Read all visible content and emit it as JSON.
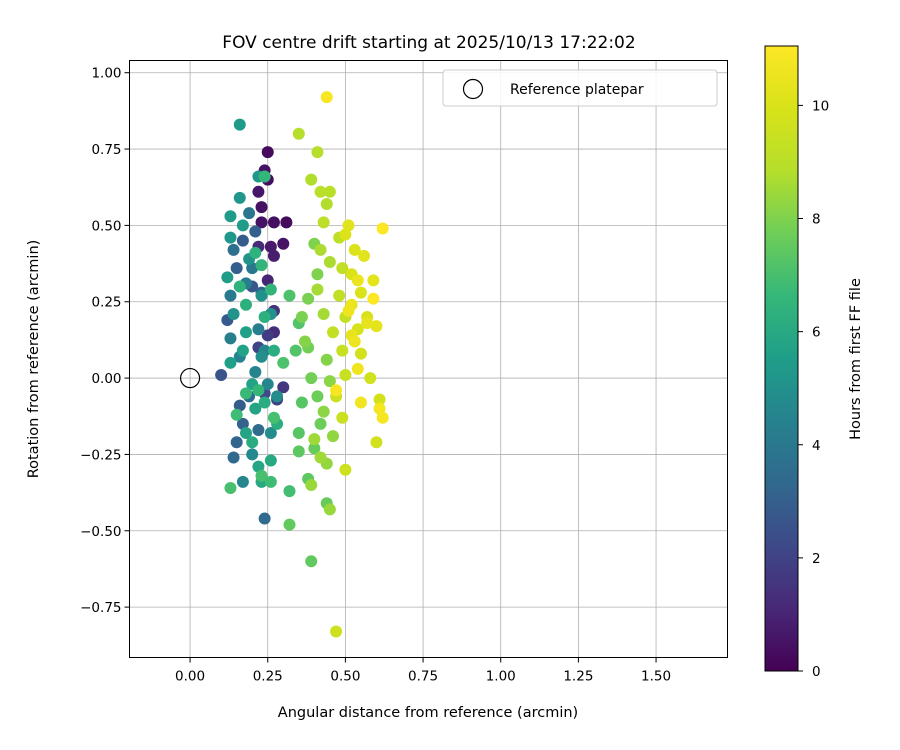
{
  "chart_data": {
    "type": "scatter",
    "title": "FOV centre drift starting at 2025/10/13 17:22:02",
    "xlabel": "Angular distance from reference (arcmin)",
    "ylabel": "Rotation from reference (arcmin)",
    "xlim": [
      -0.195,
      1.73
    ],
    "ylim": [
      -0.915,
      1.04
    ],
    "xticks": [
      0.0,
      0.25,
      0.5,
      0.75,
      1.0,
      1.25,
      1.5
    ],
    "xtick_labels": [
      "0.00",
      "0.25",
      "0.50",
      "0.75",
      "1.00",
      "1.25",
      "1.50"
    ],
    "yticks": [
      1.0,
      0.75,
      0.5,
      0.25,
      0.0,
      -0.25,
      -0.5,
      -0.75
    ],
    "ytick_labels": [
      "1.00",
      "0.75",
      "0.50",
      "0.25",
      "0.00",
      "−0.25",
      "−0.50",
      "−0.75"
    ],
    "grid": true,
    "legend": {
      "position": "top-right",
      "label": "Reference platepar"
    },
    "reference_point": {
      "x": 0.0,
      "y": 0.0
    },
    "colorbar": {
      "label": "Hours from first FF file",
      "colormap": "viridis",
      "range": [
        0,
        11.05
      ],
      "ticks": [
        0,
        2,
        4,
        6,
        8,
        10
      ],
      "tick_labels": [
        "0",
        "2",
        "4",
        "6",
        "8",
        "10"
      ]
    },
    "points_x_y_hours": [
      [
        0.25,
        0.74,
        0.3
      ],
      [
        0.24,
        0.68,
        0.5
      ],
      [
        0.25,
        0.65,
        0.4
      ],
      [
        0.22,
        0.61,
        0.6
      ],
      [
        0.23,
        0.56,
        0.5
      ],
      [
        0.23,
        0.51,
        0.5
      ],
      [
        0.27,
        0.51,
        0.4
      ],
      [
        0.31,
        0.51,
        0.3
      ],
      [
        0.26,
        0.43,
        0.7
      ],
      [
        0.3,
        0.44,
        0.5
      ],
      [
        0.27,
        0.4,
        0.8
      ],
      [
        0.22,
        0.43,
        1.2
      ],
      [
        0.25,
        0.32,
        1.0
      ],
      [
        0.27,
        0.22,
        1.5
      ],
      [
        0.27,
        0.15,
        1.3
      ],
      [
        0.25,
        0.14,
        1.8
      ],
      [
        0.3,
        -0.03,
        1.6
      ],
      [
        0.28,
        -0.07,
        1.9
      ],
      [
        0.24,
        -0.05,
        2.2
      ],
      [
        0.22,
        0.1,
        2.0
      ],
      [
        0.1,
        0.01,
        2.6
      ],
      [
        0.12,
        0.19,
        2.8
      ],
      [
        0.15,
        0.36,
        3.0
      ],
      [
        0.17,
        0.45,
        2.9
      ],
      [
        0.2,
        0.3,
        2.7
      ],
      [
        0.21,
        0.48,
        3.0
      ],
      [
        0.23,
        0.28,
        3.1
      ],
      [
        0.16,
        -0.09,
        2.9
      ],
      [
        0.17,
        -0.15,
        3.1
      ],
      [
        0.15,
        -0.21,
        3.2
      ],
      [
        0.14,
        -0.26,
        3.3
      ],
      [
        0.24,
        -0.46,
        3.4
      ],
      [
        0.22,
        -0.17,
        3.5
      ],
      [
        0.19,
        -0.06,
        3.6
      ],
      [
        0.14,
        0.42,
        3.7
      ],
      [
        0.19,
        0.54,
        3.9
      ],
      [
        0.2,
        0.36,
        4.0
      ],
      [
        0.13,
        0.27,
        4.1
      ],
      [
        0.18,
        0.31,
        4.2
      ],
      [
        0.22,
        0.16,
        4.2
      ],
      [
        0.13,
        0.13,
        4.3
      ],
      [
        0.16,
        0.07,
        4.4
      ],
      [
        0.21,
        0.02,
        4.5
      ],
      [
        0.24,
        0.09,
        4.5
      ],
      [
        0.25,
        -0.02,
        4.6
      ],
      [
        0.17,
        -0.34,
        4.6
      ],
      [
        0.2,
        -0.25,
        4.7
      ],
      [
        0.26,
        -0.18,
        4.8
      ],
      [
        0.28,
        -0.06,
        4.8
      ],
      [
        0.23,
        0.07,
        4.9
      ],
      [
        0.26,
        0.21,
        5.0
      ],
      [
        0.23,
        0.27,
        5.0
      ],
      [
        0.14,
        0.21,
        5.1
      ],
      [
        0.19,
        0.39,
        5.1
      ],
      [
        0.13,
        0.46,
        5.2
      ],
      [
        0.16,
        0.59,
        5.2
      ],
      [
        0.22,
        0.66,
        5.3
      ],
      [
        0.16,
        0.83,
        5.4
      ],
      [
        0.13,
        0.53,
        5.4
      ],
      [
        0.17,
        0.5,
        5.5
      ],
      [
        0.12,
        0.33,
        5.5
      ],
      [
        0.18,
        0.15,
        5.6
      ],
      [
        0.13,
        0.05,
        5.6
      ],
      [
        0.17,
        0.09,
        5.7
      ],
      [
        0.2,
        -0.02,
        5.7
      ],
      [
        0.21,
        -0.1,
        5.8
      ],
      [
        0.18,
        -0.18,
        5.8
      ],
      [
        0.22,
        -0.29,
        5.9
      ],
      [
        0.23,
        -0.34,
        6.0
      ],
      [
        0.26,
        -0.27,
        6.0
      ],
      [
        0.2,
        -0.21,
        6.1
      ],
      [
        0.24,
        -0.08,
        6.1
      ],
      [
        0.28,
        -0.15,
        6.2
      ],
      [
        0.27,
        0.09,
        6.2
      ],
      [
        0.24,
        0.2,
        6.3
      ],
      [
        0.18,
        0.24,
        6.3
      ],
      [
        0.16,
        0.3,
        6.4
      ],
      [
        0.21,
        0.41,
        6.4
      ],
      [
        0.23,
        0.37,
        6.5
      ],
      [
        0.26,
        0.29,
        6.5
      ],
      [
        0.24,
        0.66,
        6.6
      ],
      [
        0.22,
        -0.04,
        6.6
      ],
      [
        0.18,
        -0.05,
        6.7
      ],
      [
        0.15,
        -0.12,
        6.8
      ],
      [
        0.26,
        -0.34,
        6.8
      ],
      [
        0.32,
        -0.37,
        6.9
      ],
      [
        0.13,
        -0.36,
        7.0
      ],
      [
        0.23,
        -0.32,
        7.0
      ],
      [
        0.27,
        -0.13,
        7.0
      ],
      [
        0.3,
        0.05,
        7.1
      ],
      [
        0.32,
        0.27,
        7.1
      ],
      [
        0.35,
        0.18,
        7.2
      ],
      [
        0.34,
        0.09,
        7.2
      ],
      [
        0.36,
        -0.08,
        7.3
      ],
      [
        0.35,
        -0.18,
        7.3
      ],
      [
        0.35,
        -0.24,
        7.4
      ],
      [
        0.38,
        -0.33,
        7.4
      ],
      [
        0.32,
        -0.48,
        7.5
      ],
      [
        0.39,
        -0.6,
        7.5
      ],
      [
        0.44,
        -0.41,
        7.6
      ],
      [
        0.4,
        -0.23,
        7.6
      ],
      [
        0.42,
        -0.15,
        7.7
      ],
      [
        0.41,
        -0.06,
        7.7
      ],
      [
        0.39,
        0.0,
        7.8
      ],
      [
        0.38,
        0.1,
        7.8
      ],
      [
        0.36,
        0.2,
        7.9
      ],
      [
        0.38,
        0.26,
        7.9
      ],
      [
        0.41,
        0.34,
        8.0
      ],
      [
        0.4,
        0.44,
        8.0
      ],
      [
        0.37,
        0.12,
        8.1
      ],
      [
        0.44,
        0.06,
        8.1
      ],
      [
        0.45,
        -0.01,
        8.2
      ],
      [
        0.43,
        -0.11,
        8.2
      ],
      [
        0.46,
        -0.19,
        8.3
      ],
      [
        0.44,
        -0.28,
        8.3
      ],
      [
        0.45,
        -0.43,
        8.4
      ],
      [
        0.39,
        -0.35,
        8.4
      ],
      [
        0.42,
        -0.26,
        8.5
      ],
      [
        0.4,
        -0.2,
        8.5
      ],
      [
        0.43,
        0.21,
        8.6
      ],
      [
        0.41,
        0.29,
        8.6
      ],
      [
        0.45,
        0.38,
        8.7
      ],
      [
        0.42,
        0.42,
        8.7
      ],
      [
        0.44,
        0.57,
        8.8
      ],
      [
        0.39,
        0.65,
        8.8
      ],
      [
        0.41,
        0.74,
        8.9
      ],
      [
        0.35,
        0.8,
        8.9
      ],
      [
        0.42,
        0.61,
        9.0
      ],
      [
        0.45,
        0.61,
        9.0
      ],
      [
        0.43,
        0.51,
        9.1
      ],
      [
        0.48,
        0.46,
        9.1
      ],
      [
        0.49,
        0.36,
        9.2
      ],
      [
        0.48,
        0.27,
        9.2
      ],
      [
        0.5,
        0.2,
        9.3
      ],
      [
        0.46,
        0.15,
        9.3
      ],
      [
        0.49,
        0.09,
        9.4
      ],
      [
        0.5,
        0.01,
        9.4
      ],
      [
        0.47,
        -0.06,
        9.5
      ],
      [
        0.49,
        -0.13,
        9.5
      ],
      [
        0.5,
        -0.3,
        9.6
      ],
      [
        0.47,
        -0.83,
        9.6
      ],
      [
        0.6,
        -0.21,
        9.7
      ],
      [
        0.58,
        0.0,
        9.7
      ],
      [
        0.61,
        -0.07,
        9.8
      ],
      [
        0.55,
        0.08,
        9.8
      ],
      [
        0.54,
        0.16,
        9.9
      ],
      [
        0.57,
        0.2,
        9.9
      ],
      [
        0.55,
        0.28,
        10.0
      ],
      [
        0.52,
        0.34,
        10.0
      ],
      [
        0.53,
        0.42,
        10.1
      ],
      [
        0.5,
        0.47,
        10.1
      ],
      [
        0.51,
        0.5,
        10.2
      ],
      [
        0.56,
        0.4,
        10.2
      ],
      [
        0.59,
        0.32,
        10.3
      ],
      [
        0.6,
        0.17,
        10.3
      ],
      [
        0.57,
        0.18,
        10.4
      ],
      [
        0.52,
        0.14,
        10.4
      ],
      [
        0.52,
        0.24,
        10.5
      ],
      [
        0.54,
        0.32,
        10.5
      ],
      [
        0.51,
        0.22,
        10.6
      ],
      [
        0.53,
        0.12,
        10.6
      ],
      [
        0.54,
        0.03,
        10.7
      ],
      [
        0.55,
        -0.08,
        10.7
      ],
      [
        0.61,
        -0.1,
        10.8
      ],
      [
        0.62,
        -0.13,
        10.8
      ],
      [
        0.47,
        -0.04,
        10.9
      ],
      [
        0.44,
        0.92,
        10.9
      ],
      [
        0.62,
        0.49,
        11.0
      ],
      [
        0.59,
        0.26,
        11.0
      ]
    ]
  }
}
